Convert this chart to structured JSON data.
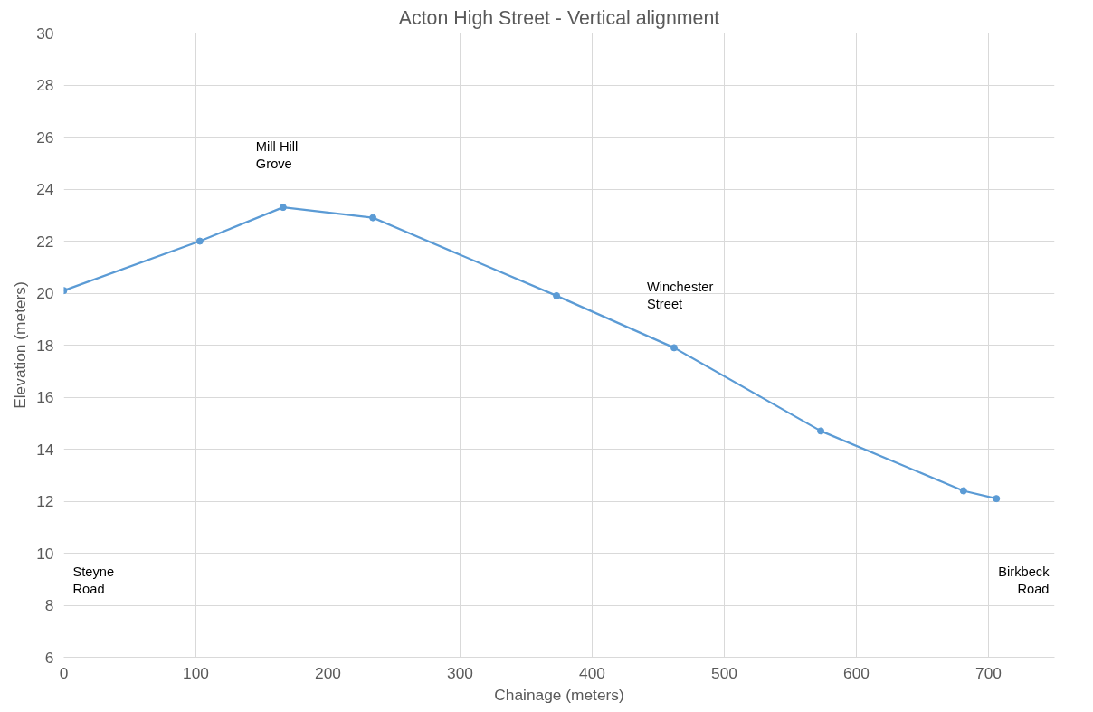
{
  "chart_data": {
    "type": "line",
    "title": "Acton High Street - Vertical alignment",
    "xlabel": "Chainage (meters)",
    "ylabel": "Elevation (meters)",
    "x": [
      0,
      103,
      166,
      234,
      373,
      462,
      573,
      681,
      706
    ],
    "series": [
      {
        "color": "#5b9bd5",
        "values": [
          20.1,
          22.0,
          23.3,
          22.9,
          19.9,
          17.9,
          14.7,
          12.4,
          12.1
        ]
      }
    ],
    "xlim": [
      0,
      750
    ],
    "xticks": [
      0,
      100,
      200,
      300,
      400,
      500,
      600,
      700
    ],
    "ylim": [
      6,
      30
    ],
    "yticks": [
      6,
      8,
      10,
      12,
      14,
      16,
      18,
      20,
      22,
      24,
      26,
      28,
      30
    ],
    "grid": true,
    "marker": "circle",
    "line_style": "solid",
    "annotations": [
      "Steyne Road",
      {
        "text": "Mill Hill Grove",
        "x": 166,
        "y": 23.3
      },
      {
        "text": "Winchester Street",
        "x": 462,
        "y": 17.9
      },
      "Birkbeck Road"
    ]
  }
}
